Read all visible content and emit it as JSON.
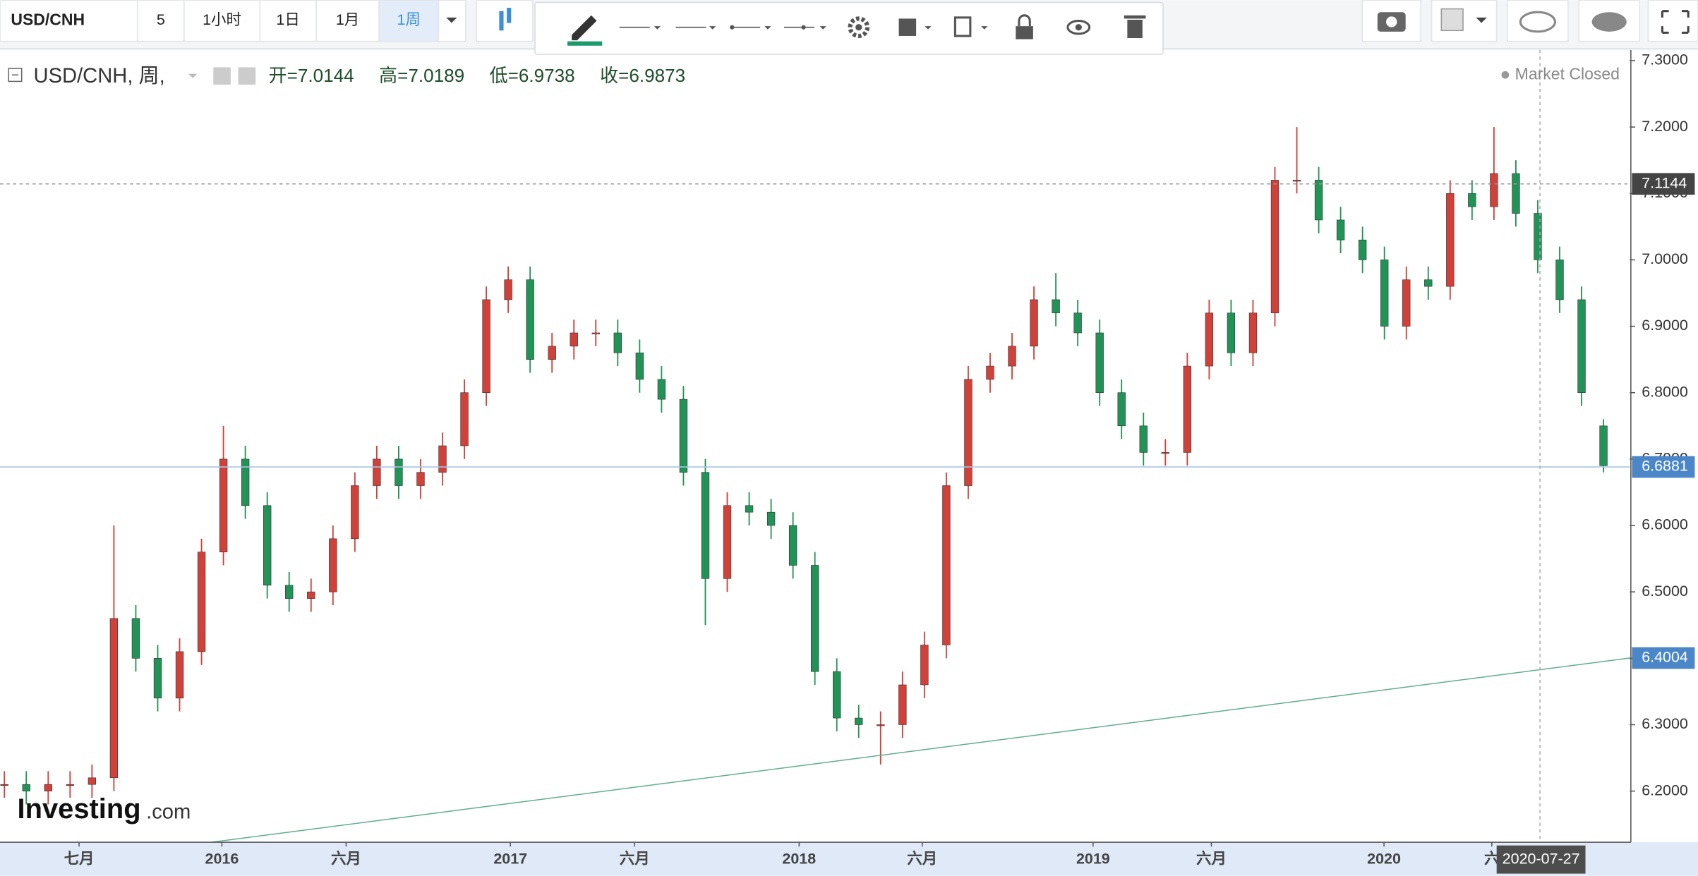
{
  "toolbar": {
    "symbol": "USD/CNH",
    "intervals": [
      "5",
      "1小时",
      "1日",
      "1月",
      "1周"
    ],
    "active_interval": 4
  },
  "legend": {
    "symbol": "USD/CNH, 周,",
    "open": "开=7.0144",
    "high": "高=7.0189",
    "low": "低=6.9738",
    "close": "收=6.9873"
  },
  "status": "Market Closed",
  "logo": [
    "Investing",
    ".com"
  ],
  "chart_data": {
    "type": "candlestick",
    "categories": [
      null,
      null,
      null,
      null,
      null,
      null,
      null,
      null,
      null,
      null,
      null,
      null,
      null,
      null,
      null,
      null,
      null,
      null,
      null,
      null,
      null,
      null,
      null,
      null,
      null,
      null,
      null,
      null,
      null,
      null,
      null,
      null,
      null,
      null,
      null,
      null,
      null,
      null,
      null,
      null,
      null,
      null,
      null,
      null,
      null,
      null,
      null,
      null,
      null,
      null,
      null,
      null,
      null,
      null,
      null,
      null,
      null,
      null,
      null,
      null,
      null,
      null,
      null,
      null,
      null,
      null,
      null,
      null,
      null,
      null,
      null,
      null,
      null,
      null
    ],
    "open": [
      6.21,
      6.21,
      6.2,
      6.21,
      6.21,
      6.22,
      6.46,
      6.4,
      6.34,
      6.41,
      6.56,
      6.7,
      6.63,
      6.51,
      6.49,
      6.5,
      6.58,
      6.66,
      6.7,
      6.66,
      6.68,
      6.72,
      6.8,
      6.94,
      6.97,
      6.85,
      6.87,
      6.89,
      6.89,
      6.86,
      6.82,
      6.79,
      6.68,
      6.52,
      6.63,
      6.62,
      6.6,
      6.54,
      6.38,
      6.31,
      6.3,
      6.3,
      6.36,
      6.42,
      6.66,
      6.82,
      6.84,
      6.87,
      6.94,
      6.92,
      6.89,
      6.8,
      6.75,
      6.71,
      6.71,
      6.84,
      6.92,
      6.86,
      6.92,
      7.12,
      7.12,
      7.06,
      7.03,
      7.0,
      6.9,
      6.97,
      6.96,
      7.1,
      7.08,
      7.13,
      7.07,
      7.0,
      6.94,
      6.75
    ],
    "high": [
      6.23,
      6.23,
      6.23,
      6.23,
      6.24,
      6.6,
      6.48,
      6.42,
      6.43,
      6.58,
      6.75,
      6.72,
      6.65,
      6.53,
      6.52,
      6.6,
      6.68,
      6.72,
      6.72,
      6.7,
      6.74,
      6.82,
      6.96,
      6.99,
      6.99,
      6.89,
      6.91,
      6.91,
      6.91,
      6.88,
      6.84,
      6.81,
      6.7,
      6.65,
      6.65,
      6.64,
      6.62,
      6.56,
      6.4,
      6.33,
      6.32,
      6.38,
      6.44,
      6.68,
      6.84,
      6.86,
      6.89,
      6.96,
      6.98,
      6.94,
      6.91,
      6.82,
      6.77,
      6.73,
      6.86,
      6.94,
      6.94,
      6.94,
      7.14,
      7.2,
      7.14,
      7.08,
      7.05,
      7.02,
      6.99,
      6.99,
      7.12,
      7.12,
      7.2,
      7.15,
      7.09,
      7.02,
      6.96,
      6.76
    ],
    "low": [
      6.19,
      6.18,
      6.18,
      6.19,
      6.19,
      6.2,
      6.38,
      6.32,
      6.32,
      6.39,
      6.54,
      6.61,
      6.49,
      6.47,
      6.47,
      6.48,
      6.56,
      6.64,
      6.64,
      6.64,
      6.66,
      6.7,
      6.78,
      6.92,
      6.83,
      6.83,
      6.85,
      6.87,
      6.84,
      6.8,
      6.77,
      6.66,
      6.45,
      6.5,
      6.6,
      6.58,
      6.52,
      6.36,
      6.29,
      6.28,
      6.24,
      6.28,
      6.34,
      6.4,
      6.64,
      6.8,
      6.82,
      6.85,
      6.9,
      6.87,
      6.78,
      6.73,
      6.69,
      6.69,
      6.69,
      6.82,
      6.84,
      6.84,
      6.9,
      7.1,
      7.04,
      7.01,
      6.98,
      6.88,
      6.88,
      6.94,
      6.94,
      7.06,
      7.06,
      7.05,
      6.98,
      6.92,
      6.78,
      6.68
    ],
    "close": [
      6.21,
      6.2,
      6.21,
      6.21,
      6.22,
      6.46,
      6.4,
      6.34,
      6.41,
      6.56,
      6.7,
      6.63,
      6.51,
      6.49,
      6.5,
      6.58,
      6.66,
      6.7,
      6.66,
      6.68,
      6.72,
      6.8,
      6.94,
      6.97,
      6.85,
      6.87,
      6.89,
      6.89,
      6.86,
      6.82,
      6.79,
      6.68,
      6.52,
      6.63,
      6.62,
      6.6,
      6.54,
      6.38,
      6.31,
      6.3,
      6.3,
      6.36,
      6.42,
      6.66,
      6.82,
      6.84,
      6.87,
      6.94,
      6.92,
      6.89,
      6.8,
      6.75,
      6.71,
      6.71,
      6.84,
      6.92,
      6.86,
      6.92,
      7.12,
      7.12,
      7.06,
      7.03,
      7.0,
      6.9,
      6.97,
      6.96,
      7.1,
      7.08,
      7.13,
      7.07,
      7.0,
      6.94,
      6.8,
      6.69
    ],
    "up_color": "#d0413a",
    "down_color": "#229356",
    "ylim": [
      6.123,
      7.316
    ],
    "yticks": [
      {
        "value": 6.2,
        "label": "6.2000"
      },
      {
        "value": 6.3,
        "label": "6.3000"
      },
      {
        "value": 6.4,
        "label": "6.4000"
      },
      {
        "value": 6.5,
        "label": "6.5000"
      },
      {
        "value": 6.6,
        "label": "6.6000"
      },
      {
        "value": 6.7,
        "label": "6.7000"
      },
      {
        "value": 6.8,
        "label": "6.8000"
      },
      {
        "value": 6.9,
        "label": "6.9000"
      },
      {
        "value": 7.0,
        "label": "7.0000"
      },
      {
        "value": 7.1,
        "label": "7.1000"
      },
      {
        "value": 7.2,
        "label": "7.2000"
      },
      {
        "value": 7.3,
        "label": "7.3000"
      }
    ],
    "xlim": [
      -0.2,
      74.2
    ],
    "xticks": [
      {
        "value": 3.41,
        "label": "七月"
      },
      {
        "value": 9.93,
        "label": "2016"
      },
      {
        "value": 15.6,
        "label": "六月"
      },
      {
        "value": 23.1,
        "label": "2017"
      },
      {
        "value": 28.77,
        "label": "六月"
      },
      {
        "value": 36.28,
        "label": "2018"
      },
      {
        "value": 41.9,
        "label": "六月"
      },
      {
        "value": 49.7,
        "label": "2019"
      },
      {
        "value": 55.1,
        "label": "六月"
      },
      {
        "value": 62.98,
        "label": "2020"
      },
      {
        "value": 67.9,
        "label": "六"
      }
    ],
    "price_lines": [
      {
        "value": 7.1144,
        "color": "#444444",
        "style": "dashed"
      },
      {
        "value": 6.6881,
        "color": "#4a86c8",
        "style": "solid"
      }
    ],
    "trendline": {
      "x": [
        9.44,
        74.2
      ],
      "values": [
        6.123,
        6.4004
      ],
      "color": "#5fae8f",
      "label_color": "#4a86c8"
    },
    "crosshair": {
      "value": 70.1,
      "label": "2020-07-27"
    }
  }
}
